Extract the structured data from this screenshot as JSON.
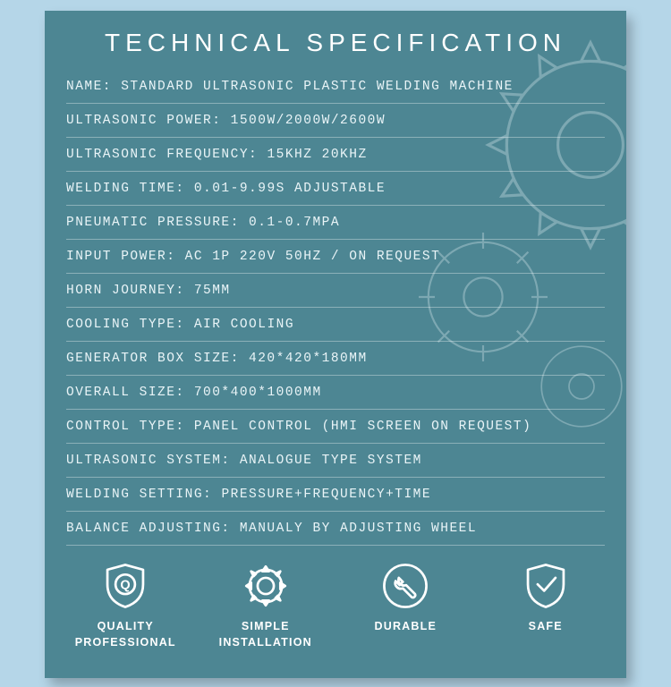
{
  "title": "TECHNICAL SPECIFICATION",
  "title_fontsize": 28,
  "title_letter_spacing": 6,
  "card_bg": "#4d8693",
  "page_bg": "#b5d6e8",
  "text_color": "#e9f4f7",
  "divider_color": "rgba(255,255,255,0.35)",
  "specs": [
    {
      "label": "NAME",
      "value": "STANDARD ULTRASONIC PLASTIC WELDING MACHINE"
    },
    {
      "label": "ULTRASONIC POWER",
      "value": "1500W/2000W/2600W"
    },
    {
      "label": "ULTRASONIC FREQUENCY",
      "value": "15KHZ  20KHZ"
    },
    {
      "label": "WELDING TIME",
      "value": "0.01-9.99S ADJUSTABLE"
    },
    {
      "label": "PNEUMATIC PRESSURE",
      "value": "0.1-0.7MPA"
    },
    {
      "label": "INPUT POWER",
      "value": "AC 1P 220V 50HZ / ON REQUEST"
    },
    {
      "label": "HORN JOURNEY",
      "value": "75MM"
    },
    {
      "label": "COOLING TYPE",
      "value": "AIR COOLING"
    },
    {
      "label": "GENERATOR BOX SIZE",
      "value": "420*420*180MM"
    },
    {
      "label": "OVERALL SIZE",
      "value": "700*400*1000MM"
    },
    {
      "label": "CONTROL TYPE",
      "value": "PANEL CONTROL (HMI SCREEN ON REQUEST)"
    },
    {
      "label": "ULTRASONIC SYSTEM",
      "value": "ANALOGUE TYPE SYSTEM"
    },
    {
      "label": "WELDING SETTING",
      "value": "PRESSURE+FREQUENCY+TIME"
    },
    {
      "label": "BALANCE ADJUSTING",
      "value": "MANUALY BY ADJUSTING WHEEL"
    }
  ],
  "features": [
    {
      "icon": "quality-shield-icon",
      "caption": "QUALITY\nPROFESSIONAL"
    },
    {
      "icon": "gear-icon",
      "caption": "SIMPLE\nINSTALLATION"
    },
    {
      "icon": "wrench-circle-icon",
      "caption": "DURABLE"
    },
    {
      "icon": "shield-check-icon",
      "caption": "SAFE"
    }
  ],
  "icon_stroke": "#ffffff",
  "icon_stroke_width": 3,
  "spec_fontsize": 14.5,
  "feature_fontsize": 12.5
}
